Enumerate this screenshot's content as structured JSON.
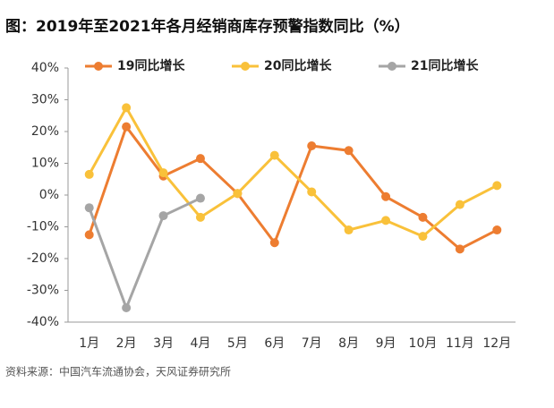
{
  "chart_data": {
    "type": "line",
    "title": "图：2019年至2021年各月经销商库存预警指数同比（%）",
    "source": "资料来源：中国汽车流通协会，天风证券研究所",
    "categories": [
      "1月",
      "2月",
      "3月",
      "4月",
      "5月",
      "6月",
      "7月",
      "8月",
      "9月",
      "10月",
      "11月",
      "12月"
    ],
    "series": [
      {
        "name": "19同比增长",
        "color": "#ED7D31",
        "values": [
          -12.5,
          21.5,
          6,
          11.5,
          0.5,
          -15,
          15.5,
          14,
          -0.5,
          -7,
          -17,
          -11
        ]
      },
      {
        "name": "20同比增长",
        "color": "#F9C13A",
        "values": [
          6.5,
          27.5,
          7,
          -7,
          0.5,
          12.5,
          1,
          -11,
          -8,
          -13,
          -3,
          3
        ]
      },
      {
        "name": "21同比增长",
        "color": "#A5A5A5",
        "values": [
          -4,
          -35.5,
          -6.5,
          -1,
          null,
          null,
          null,
          null,
          null,
          null,
          null,
          null
        ]
      }
    ],
    "ylim": [
      -40,
      40
    ],
    "yticks": [
      {
        "value": -40,
        "label": "-40%"
      },
      {
        "value": -30,
        "label": "-30%"
      },
      {
        "value": -20,
        "label": "-20%"
      },
      {
        "value": -10,
        "label": "-10%"
      },
      {
        "value": 0,
        "label": "0%"
      },
      {
        "value": 10,
        "label": "10%"
      },
      {
        "value": 20,
        "label": "20%"
      },
      {
        "value": 30,
        "label": "30%"
      },
      {
        "value": 40,
        "label": "40%"
      }
    ],
    "legend": "top"
  }
}
